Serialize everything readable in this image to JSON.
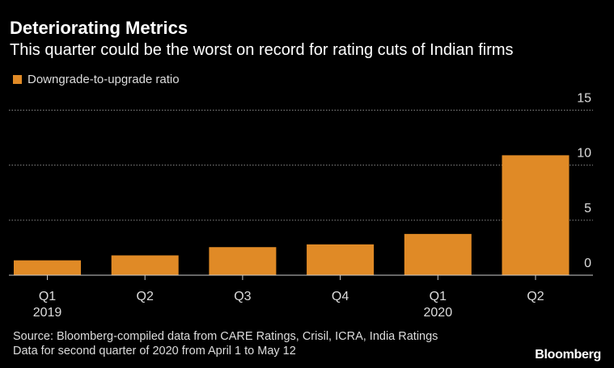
{
  "header": {
    "title": "Deteriorating Metrics",
    "subtitle": "This quarter could be the worst on record for rating cuts of Indian firms"
  },
  "footer": {
    "source": "Source: Bloomberg-compiled data from CARE Ratings, Crisil, ICRA, India Ratings",
    "note": "Data for second quarter of 2020 from April 1 to May 12",
    "logo": "Bloomberg"
  },
  "chart_data": {
    "type": "bar",
    "categories": [
      "Q1 2019",
      "Q2",
      "Q3",
      "Q4",
      "Q1 2020",
      "Q2"
    ],
    "tick_labels": [
      [
        "Q1",
        "2019"
      ],
      [
        "Q2",
        ""
      ],
      [
        "Q3",
        ""
      ],
      [
        "Q4",
        ""
      ],
      [
        "Q1",
        "2020"
      ],
      [
        "Q2",
        ""
      ]
    ],
    "series": [
      {
        "name": "Downgrade-to-upgrade ratio",
        "values": [
          1.35,
          1.8,
          2.55,
          2.8,
          3.75,
          10.9
        ],
        "color": "#e08a26"
      }
    ],
    "ylim": [
      0,
      15
    ],
    "yticks": [
      0,
      5,
      10,
      15
    ],
    "y_axis_position": "right",
    "grid": true,
    "legend": "top-left",
    "background": "#000000"
  }
}
